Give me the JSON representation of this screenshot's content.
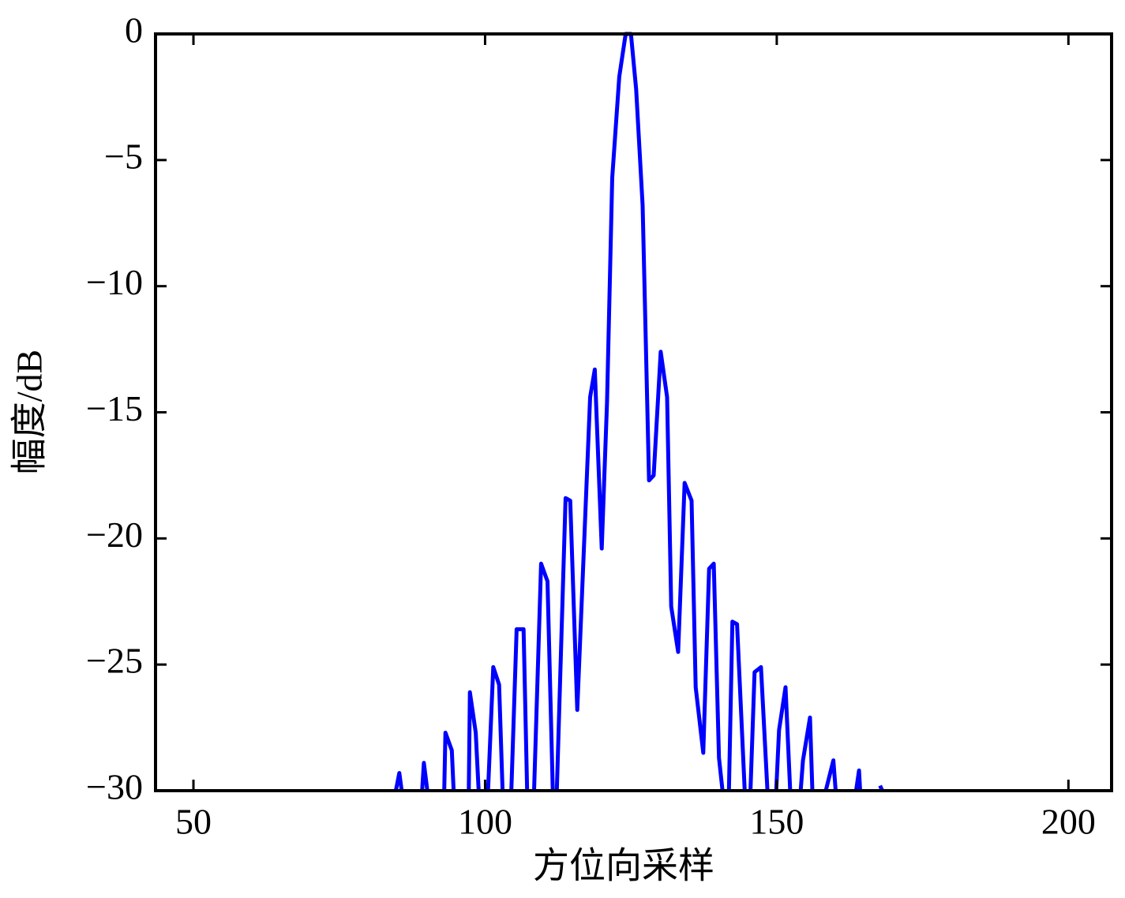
{
  "chart_data": {
    "type": "line",
    "xlabel": "方位向采样",
    "ylabel": "幅度/dB",
    "xlim": [
      43.5,
      207.4
    ],
    "ylim": [
      -30,
      0
    ],
    "xticks": [
      50,
      100,
      150,
      200
    ],
    "yticks": [
      {
        "value": -30,
        "label": "−30"
      },
      {
        "value": -25,
        "label": "−25"
      },
      {
        "value": -20,
        "label": "−20"
      },
      {
        "value": -15,
        "label": "−15"
      },
      {
        "value": -10,
        "label": "−10"
      },
      {
        "value": -5,
        "label": "−5"
      },
      0
    ],
    "series": [
      {
        "color": "#0000ff",
        "x": [
          84.7,
          85.3,
          85.7,
          null,
          89.2,
          89.5,
          90.1,
          null,
          93.0,
          93.2,
          94.3,
          94.6,
          null,
          97.2,
          97.4,
          98.4,
          98.9,
          null,
          100.5,
          101.4,
          102.4,
          103.0,
          null,
          104.5,
          105.4,
          106.6,
          107.2,
          null,
          108.4,
          109.6,
          110.7,
          111.6,
          null,
          112.3,
          113.8,
          114.6,
          115.8,
          118.0,
          118.8,
          120.0,
          120.9,
          121.8,
          123.0,
          124.1,
          125.0,
          125.9,
          127.0,
          128.1,
          128.9,
          130.1,
          131.2,
          131.9,
          133.1,
          134.2,
          135.4,
          136.1,
          137.4,
          138.4,
          139.2,
          140.1,
          140.7,
          null,
          141.8,
          142.4,
          143.2,
          144.5,
          null,
          145.5,
          146.2,
          147.3,
          148.4,
          null,
          149.9,
          150.4,
          151.5,
          152.3,
          null,
          154.1,
          154.5,
          155.7,
          156.1,
          null,
          158.4,
          159.7,
          160.1,
          null,
          163.6,
          164.1,
          164.3,
          null,
          167.7,
          168.1
        ],
        "values": [
          -30,
          -29.3,
          -30,
          null,
          -30,
          -28.9,
          -30,
          null,
          -30,
          -27.7,
          -28.4,
          -30,
          null,
          -30,
          -26.1,
          -27.7,
          -30,
          null,
          -30,
          -25.1,
          -25.8,
          -30,
          null,
          -30,
          -23.6,
          -23.6,
          -30,
          null,
          -30,
          -21.0,
          -21.7,
          -30,
          null,
          -30,
          -18.4,
          -18.5,
          -26.8,
          -14.4,
          -13.3,
          -20.4,
          -14.6,
          -5.7,
          -1.7,
          0,
          0,
          -2.2,
          -6.8,
          -17.7,
          -17.5,
          -12.6,
          -14.4,
          -22.7,
          -24.5,
          -17.8,
          -18.5,
          -25.9,
          -28.5,
          -21.2,
          -21.0,
          -28.7,
          -30,
          null,
          -30,
          -23.3,
          -23.4,
          -30,
          null,
          -30,
          -25.3,
          -25.1,
          -30,
          null,
          -30,
          -27.6,
          -25.9,
          -30,
          null,
          -30,
          -28.8,
          -27.1,
          -30,
          null,
          -30,
          -28.8,
          -30,
          null,
          -30,
          -29.2,
          -30,
          null,
          -29.8,
          -30
        ]
      }
    ]
  }
}
